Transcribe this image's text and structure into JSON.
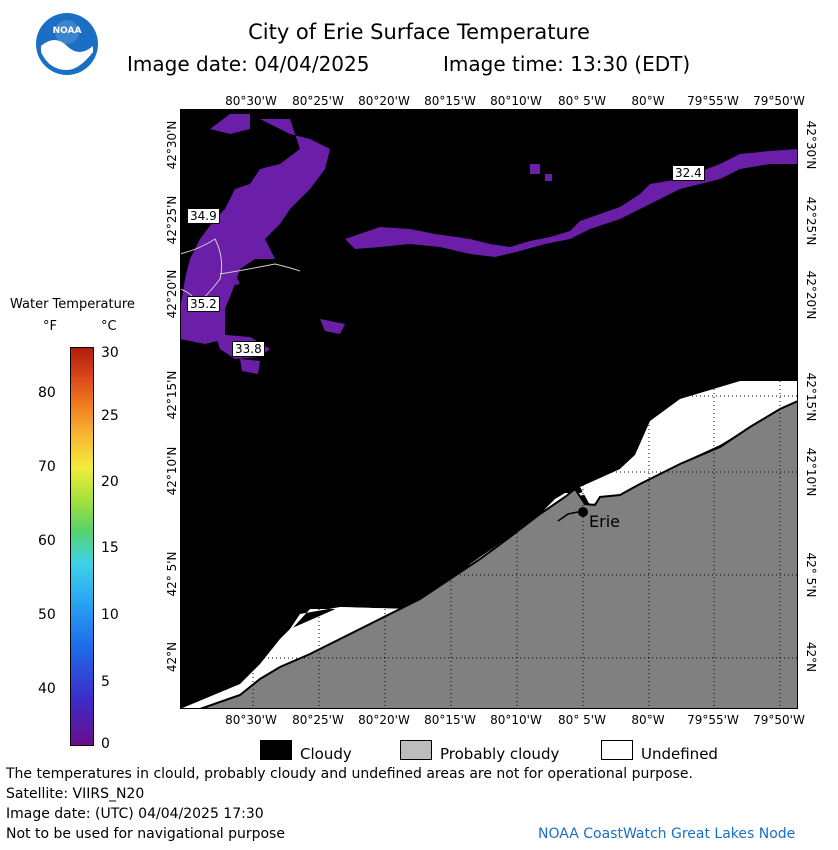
{
  "header": {
    "title": "City of Erie Surface Temperature",
    "date_label": "Image date: 04/04/2025",
    "time_label": "Image time: 13:30 (EDT)"
  },
  "logo": {
    "text": "NOAA",
    "color": "#1a6fc4"
  },
  "map": {
    "lon_labels": [
      "80°30'W",
      "80°25'W",
      "80°20'W",
      "80°15'W",
      "80°10'W",
      "80° 5'W",
      "80°W",
      "79°55'W",
      "79°50'W"
    ],
    "lat_labels": [
      "42°30'N",
      "42°25'N",
      "42°20'N",
      "42°15'N",
      "42°10'N",
      "42° 5'N",
      "42°N"
    ],
    "temp_labels": [
      "34.9",
      "35.2",
      "33.8",
      "32.4"
    ],
    "city": "Erie",
    "colors": {
      "water": "#000000",
      "probably_cloudy": "#808080",
      "undefined": "#ffffff",
      "cold_water": "#6b1fa8"
    }
  },
  "legend": {
    "title": "Water Temperature",
    "unit_f": "°F",
    "unit_c": "°C",
    "f_ticks": [
      "80",
      "70",
      "60",
      "50",
      "40"
    ],
    "c_ticks": [
      "30",
      "25",
      "20",
      "15",
      "10",
      "5",
      "0"
    ]
  },
  "key": {
    "cloudy": "Cloudy",
    "probably_cloudy": "Probably cloudy",
    "undefined": "Undefined"
  },
  "footer": {
    "line1": "The temperatures in clould, probably cloudy and undefined areas are not for operational purpose.",
    "line2": "Satellite: VIIRS_N20",
    "line3": "Image date: (UTC) 04/04/2025  17:30",
    "line4": "Not to be used for navigational purpose",
    "credit": "NOAA CoastWatch Great Lakes Node"
  }
}
